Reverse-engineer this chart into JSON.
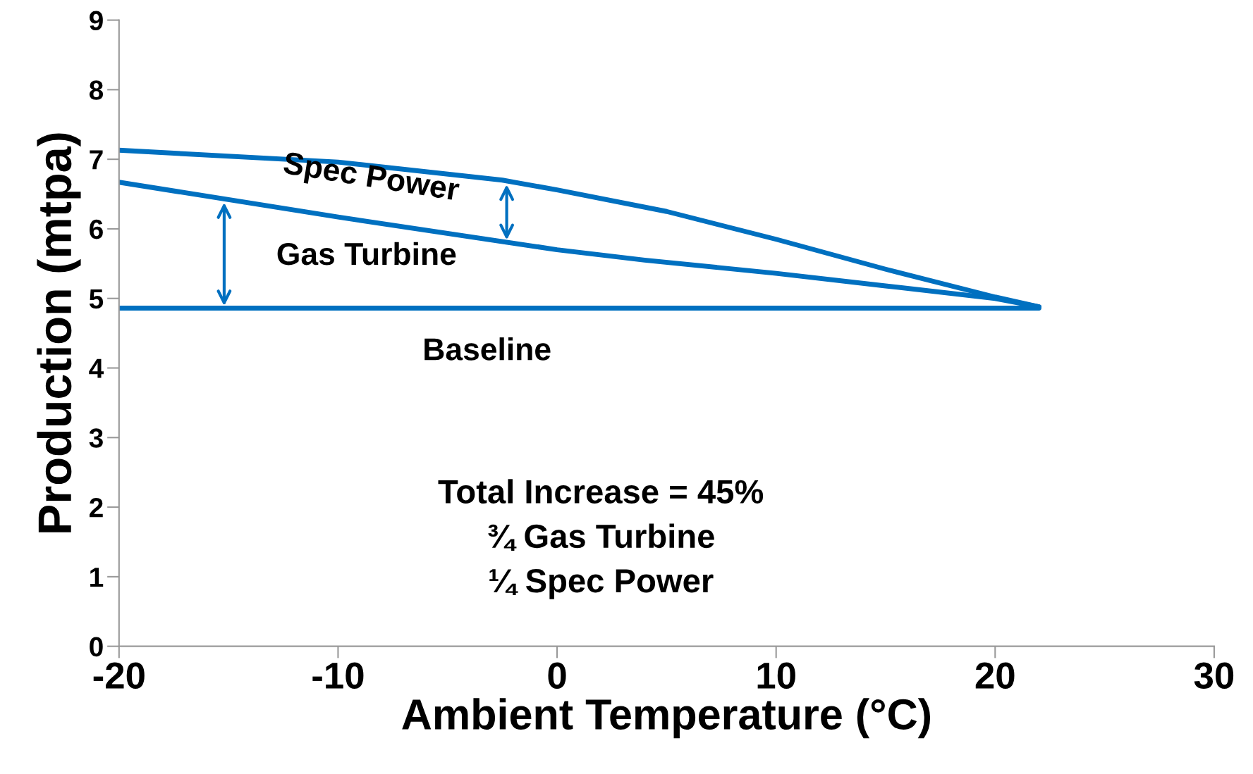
{
  "chart_data": {
    "type": "line",
    "xlabel": "Ambient Temperature (°C)",
    "ylabel": "Production (mtpa)",
    "xlim": [
      -20,
      30
    ],
    "xticks": [
      -20,
      -10,
      0,
      10,
      20,
      30
    ],
    "ylim": [
      0,
      9
    ],
    "yticks": [
      0,
      1,
      2,
      3,
      4,
      5,
      6,
      7,
      8,
      9
    ],
    "grid": false,
    "marker": "none",
    "line_style": "solid",
    "series": [
      {
        "name": "Spec Power",
        "color": "#0070c0",
        "x": [
          -20,
          -10,
          -2.5,
          0,
          5,
          10,
          15,
          20,
          22
        ],
        "values": [
          7.13,
          6.96,
          6.7,
          6.56,
          6.25,
          5.85,
          5.42,
          5.02,
          4.88
        ]
      },
      {
        "name": "Gas Turbine",
        "color": "#0070c0",
        "x": [
          -20,
          -10,
          0,
          4,
          10,
          15,
          20,
          22
        ],
        "values": [
          6.67,
          6.17,
          5.7,
          5.55,
          5.36,
          5.18,
          5.0,
          4.88
        ]
      },
      {
        "name": "Baseline",
        "color": "#0070c0",
        "x": [
          -20,
          22
        ],
        "values": [
          4.86,
          4.86
        ]
      }
    ],
    "annotations": [
      "Total Increase = 45%",
      "¾ Gas Turbine",
      "¼ Spec Power"
    ]
  }
}
